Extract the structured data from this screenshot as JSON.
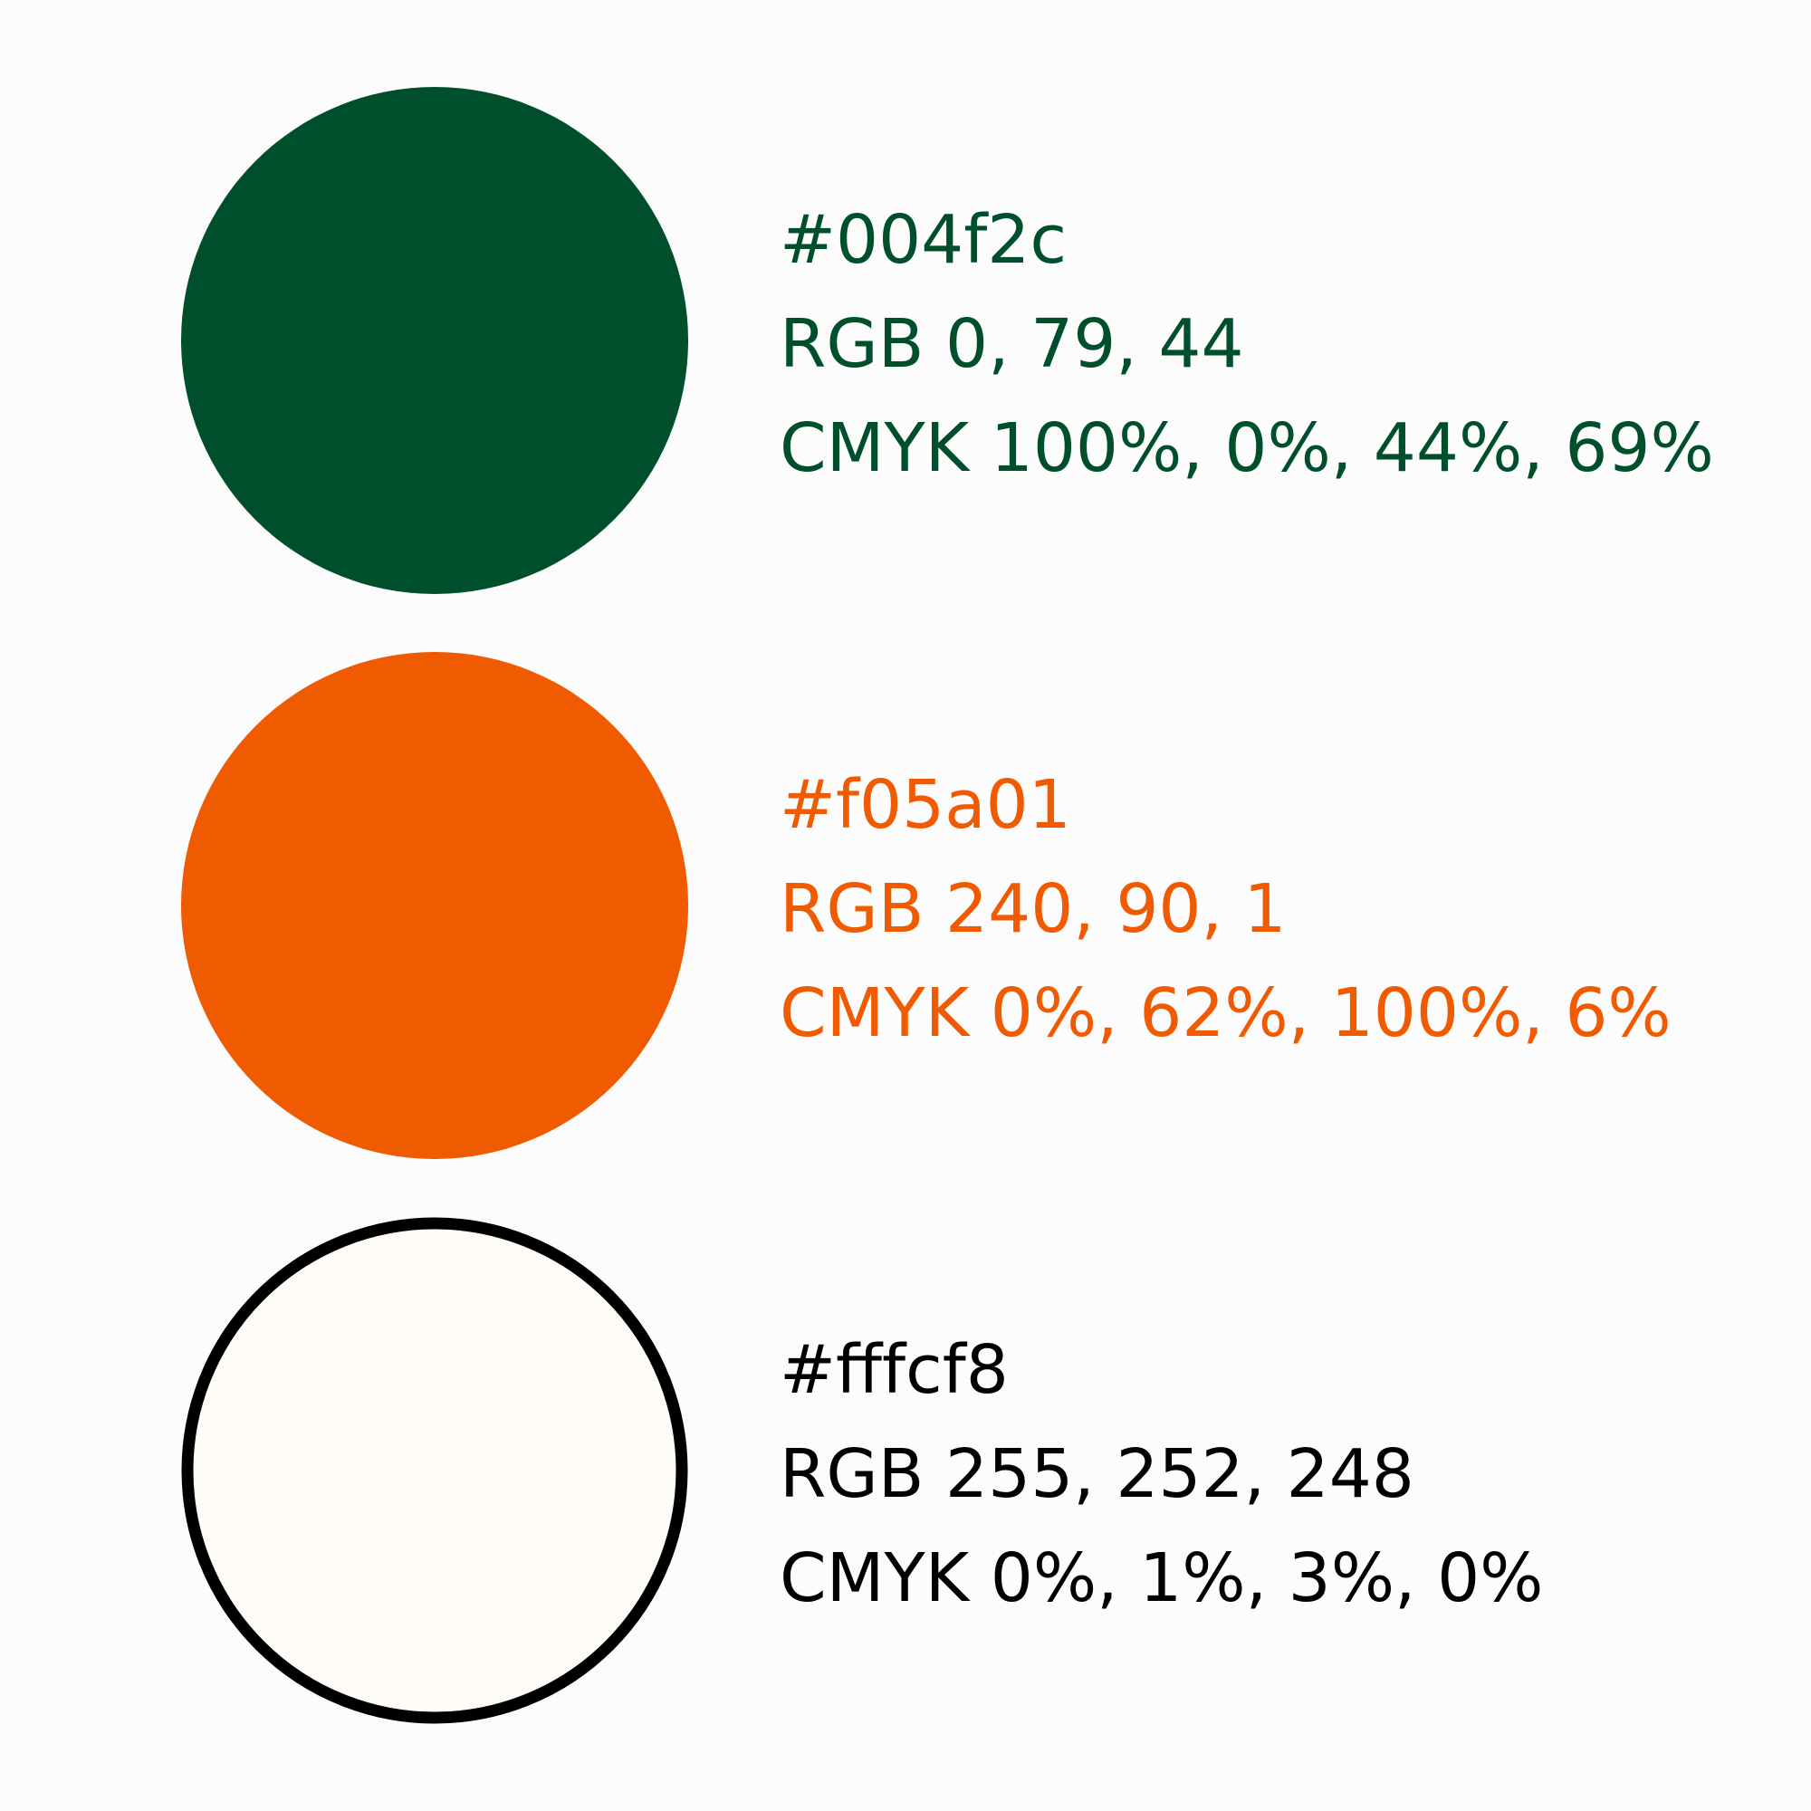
{
  "swatches": [
    {
      "hex": "#004f2c",
      "rgb": "RGB 0, 79, 44",
      "cmyk": "CMYK 100%, 0%, 44%, 69%",
      "text_color": "#004f2c",
      "outline": false
    },
    {
      "hex": "#f05a01",
      "rgb": "RGB 240, 90, 1",
      "cmyk": "CMYK 0%, 62%, 100%, 6%",
      "text_color": "#f05a01",
      "outline": false
    },
    {
      "hex": "#fffcf8",
      "rgb": "RGB 255, 252, 248",
      "cmyk": "CMYK 0%, 1%, 3%, 0%",
      "text_color": "#000000",
      "outline": true
    }
  ]
}
